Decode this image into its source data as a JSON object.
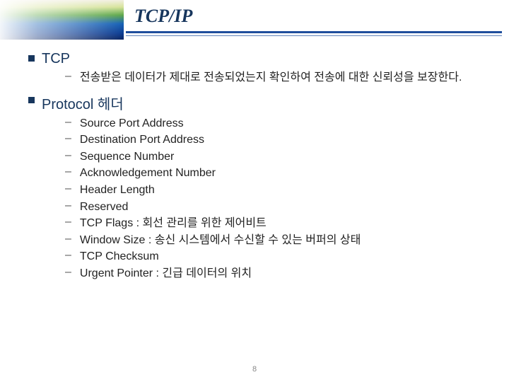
{
  "title": "TCP/IP",
  "title_fontsize": 26,
  "title_color": "#17365d",
  "underline_color": "#1f4e9c",
  "sections": [
    {
      "heading": "TCP",
      "heading_fontsize": 20,
      "items": [
        {
          "text": "전송받은 데이터가 제대로 전송되었는지 확인하여 전송에 대한 신뢰성을 보장한다."
        }
      ]
    },
    {
      "heading": "Protocol 헤더",
      "heading_fontsize": 20,
      "items": [
        {
          "text": "Source Port Address"
        },
        {
          "text": "Destination Port Address"
        },
        {
          "text": "Sequence Number"
        },
        {
          "text": "Acknowledgement Number"
        },
        {
          "text": "Header Length"
        },
        {
          "text": "Reserved"
        },
        {
          "text": "TCP Flags : 회선 관리를 위한 제어비트"
        },
        {
          "text": "Window Size : 송신 시스템에서 수신할 수 있는 버퍼의 상태"
        },
        {
          "text": "TCP Checksum"
        },
        {
          "text": "Urgent Pointer : 긴급 데이터의 위치"
        }
      ]
    }
  ],
  "body_fontsize": 16,
  "body_color": "#222222",
  "dash_char": "–",
  "page_number": "8",
  "page_number_fontsize": 11,
  "page_number_color": "#888888",
  "square_bullet_color": "#17365d"
}
